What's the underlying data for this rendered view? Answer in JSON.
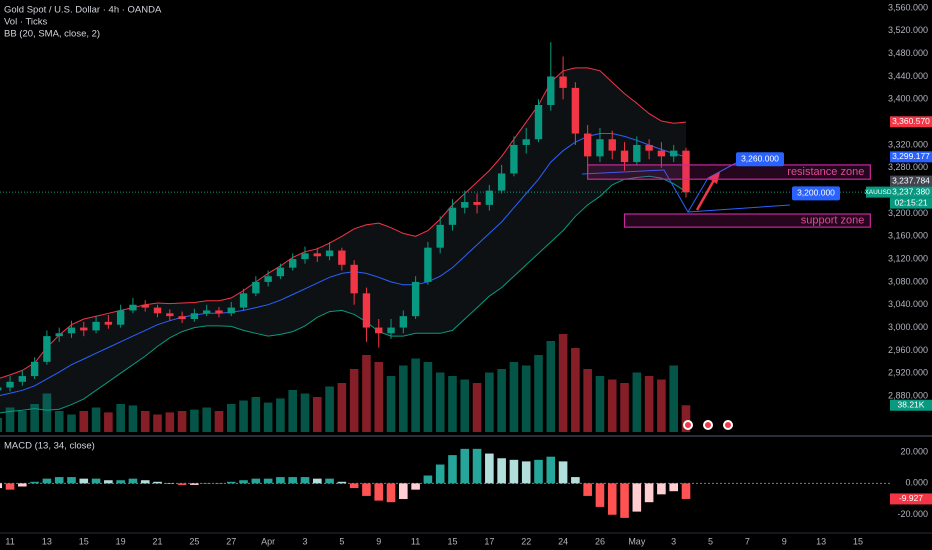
{
  "chart_data": [
    {
      "type": "candlestick",
      "title": "Gold Spot / U.S. Dollar · 4h · OANDA",
      "symbol": "XAUUSD",
      "countdown": "02:15:21",
      "categories": [
        null,
        "11",
        null,
        null,
        "13",
        null,
        null,
        "15",
        null,
        null,
        "19",
        null,
        null,
        "21",
        null,
        null,
        "25",
        null,
        null,
        "27",
        null,
        null,
        "Apr",
        null,
        null,
        "3",
        null,
        null,
        "5",
        null,
        null,
        "9",
        null,
        null,
        "11",
        null,
        null,
        "15",
        null,
        null,
        "17",
        null,
        null,
        "22",
        null,
        null,
        "24",
        null,
        null,
        "26",
        null,
        null,
        "May",
        null,
        null,
        "3",
        null,
        null,
        "5",
        null,
        null,
        "7",
        null,
        null,
        "9",
        null,
        null,
        "13",
        null,
        null,
        "15",
        null
      ],
      "series": [
        {
          "name": "XAUUSD",
          "color_up": "#089981",
          "color_down": "#f23645",
          "open": [
            2890,
            2895,
            2905,
            2915,
            2940,
            2985,
            2990,
            3000,
            2995,
            3010,
            3005,
            3030,
            3040,
            3035,
            3025,
            3020,
            3015,
            3025,
            3030,
            3025,
            3035,
            3060,
            3080,
            3090,
            3105,
            3120,
            3130,
            3125,
            3135,
            3110,
            3060,
            3000,
            2990,
            3000,
            3020,
            3080,
            3140,
            3180,
            3210,
            3220,
            3215,
            3240,
            3270,
            3320,
            3330,
            3390,
            3440,
            3420,
            3340,
            3300,
            3330,
            3310,
            3290,
            3320,
            3310,
            3300,
            3310,
            null,
            null,
            null,
            null,
            null,
            null,
            null,
            null,
            null,
            null,
            null,
            null,
            null,
            null,
            null
          ],
          "high": [
            2905,
            2915,
            2925,
            2948,
            2995,
            3000,
            3012,
            3010,
            3020,
            3022,
            3040,
            3052,
            3048,
            3040,
            3032,
            3028,
            3033,
            3040,
            3036,
            3045,
            3068,
            3090,
            3100,
            3112,
            3130,
            3142,
            3140,
            3150,
            3140,
            3118,
            3070,
            3015,
            3015,
            3030,
            3090,
            3150,
            3195,
            3225,
            3240,
            3235,
            3250,
            3285,
            3335,
            3350,
            3400,
            3500,
            3475,
            3430,
            3355,
            3350,
            3345,
            3325,
            3335,
            3330,
            3325,
            3320,
            3315,
            null,
            null,
            null,
            null,
            null,
            null,
            null,
            null,
            null,
            null,
            null,
            null,
            null,
            null,
            null
          ],
          "low": [
            2880,
            2888,
            2898,
            2910,
            2935,
            2975,
            2982,
            2985,
            2990,
            2998,
            3000,
            3025,
            3028,
            3018,
            3012,
            3008,
            3010,
            3020,
            3018,
            3020,
            3030,
            3055,
            3072,
            3085,
            3100,
            3112,
            3115,
            3118,
            3100,
            3040,
            2975,
            2965,
            2980,
            2990,
            3015,
            3075,
            3130,
            3170,
            3200,
            3200,
            3205,
            3235,
            3265,
            3305,
            3325,
            3380,
            3400,
            3320,
            3270,
            3290,
            3295,
            3275,
            3285,
            3295,
            3280,
            3290,
            3228,
            null,
            null,
            null,
            null,
            null,
            null,
            null,
            null,
            null,
            null,
            null,
            null,
            null,
            null,
            null
          ],
          "close": [
            2895,
            2905,
            2915,
            2940,
            2985,
            2990,
            3000,
            2995,
            3010,
            3005,
            3030,
            3040,
            3035,
            3025,
            3020,
            3015,
            3025,
            3030,
            3025,
            3035,
            3060,
            3080,
            3090,
            3105,
            3120,
            3130,
            3125,
            3135,
            3110,
            3060,
            3000,
            2990,
            3000,
            3020,
            3080,
            3140,
            3180,
            3210,
            3220,
            3215,
            3240,
            3270,
            3320,
            3330,
            3390,
            3440,
            3420,
            3340,
            3300,
            3330,
            3310,
            3290,
            3320,
            3310,
            3300,
            3310,
            3237,
            null,
            null,
            null,
            null,
            null,
            null,
            null,
            null,
            null,
            null,
            null,
            null,
            null,
            null,
            null
          ]
        }
      ],
      "volume": {
        "name": "Vol · Ticks",
        "color_up": "rgba(8,153,129,0.55)",
        "color_down": "rgba(242,54,69,0.55)",
        "ylim": [
          0,
          150
        ],
        "values": [
          20,
          35,
          30,
          40,
          55,
          30,
          25,
          30,
          35,
          28,
          40,
          38,
          30,
          25,
          28,
          30,
          32,
          35,
          30,
          40,
          45,
          50,
          42,
          48,
          60,
          55,
          50,
          65,
          70,
          90,
          110,
          100,
          80,
          95,
          105,
          100,
          85,
          80,
          75,
          70,
          85,
          90,
          100,
          95,
          110,
          130,
          140,
          120,
          90,
          80,
          75,
          70,
          85,
          80,
          75,
          95,
          38.21,
          null,
          null,
          null,
          null,
          null,
          null,
          null,
          null,
          null,
          null,
          null,
          null,
          null,
          null,
          null
        ],
        "value_label": {
          "value": 38.21,
          "label": "38.21K"
        },
        "label_color": "#089981"
      },
      "bollinger": {
        "name": "BB (20, SMA, close, 2)",
        "colors": {
          "upper": "#f23645",
          "basis": "#2962ff",
          "lower": "#089981"
        },
        "fill": "rgba(110,130,150,0.13)",
        "upper": [
          2910,
          2917,
          2925,
          2938,
          2965,
          2987,
          3005,
          3015,
          3020,
          3025,
          3030,
          3035,
          3040,
          3043,
          3042,
          3043,
          3044,
          3047,
          3047,
          3052,
          3065,
          3080,
          3095,
          3108,
          3123,
          3133,
          3138,
          3148,
          3160,
          3173,
          3180,
          3183,
          3175,
          3165,
          3160,
          3170,
          3190,
          3215,
          3235,
          3255,
          3275,
          3300,
          3330,
          3360,
          3390,
          3430,
          3450,
          3455,
          3455,
          3450,
          3430,
          3410,
          3393,
          3375,
          3362,
          3358,
          3360,
          null,
          null,
          null,
          null,
          null,
          null,
          null,
          null,
          null,
          null,
          null,
          null,
          null,
          null,
          null
        ],
        "basis": [
          2880,
          2885,
          2890,
          2898,
          2910,
          2922,
          2935,
          2945,
          2955,
          2965,
          2975,
          2985,
          2995,
          3005,
          3012,
          3018,
          3022,
          3025,
          3025,
          3027,
          3030,
          3035,
          3040,
          3048,
          3058,
          3068,
          3078,
          3088,
          3095,
          3098,
          3095,
          3088,
          3080,
          3075,
          3075,
          3080,
          3090,
          3105,
          3125,
          3145,
          3165,
          3185,
          3210,
          3235,
          3260,
          3290,
          3310,
          3325,
          3335,
          3340,
          3340,
          3335,
          3328,
          3320,
          3312,
          3305,
          3299,
          null,
          null,
          null,
          null,
          null,
          null,
          null,
          null,
          null,
          null,
          null,
          null,
          null,
          null,
          null
        ],
        "lower": [
          2850,
          2853,
          2855,
          2858,
          2855,
          2857,
          2865,
          2875,
          2890,
          2905,
          2920,
          2935,
          2950,
          2967,
          2982,
          2993,
          3000,
          3003,
          3003,
          3002,
          2995,
          2990,
          2985,
          2988,
          2993,
          3003,
          3018,
          3028,
          3030,
          3023,
          3010,
          2993,
          2985,
          2985,
          2990,
          2990,
          2990,
          2995,
          3015,
          3035,
          3055,
          3070,
          3090,
          3110,
          3130,
          3150,
          3170,
          3195,
          3215,
          3230,
          3250,
          3260,
          3263,
          3265,
          3262,
          3252,
          3238,
          null,
          null,
          null,
          null,
          null,
          null,
          null,
          null,
          null,
          null,
          null,
          null,
          null,
          null,
          null
        ]
      },
      "ylim": [
        2817,
        3574
      ],
      "yticks": [
        {
          "value": 3560,
          "label": "3,560.000"
        },
        {
          "value": 3520,
          "label": "3,520.000"
        },
        {
          "value": 3480,
          "label": "3,480.000"
        },
        {
          "value": 3440,
          "label": "3,440.000"
        },
        {
          "value": 3400,
          "label": "3,400.000"
        },
        {
          "value": 3320,
          "label": "3,320.000"
        },
        {
          "value": 3280,
          "label": "3,280.000"
        },
        {
          "value": 3200,
          "label": "3,200.000"
        },
        {
          "value": 3160,
          "label": "3,160.000"
        },
        {
          "value": 3120,
          "label": "3,120.000"
        },
        {
          "value": 3080,
          "label": "3,080.000"
        },
        {
          "value": 3040,
          "label": "3,040.000"
        },
        {
          "value": 3000,
          "label": "3,000.000"
        },
        {
          "value": 2960,
          "label": "2,960.000"
        },
        {
          "value": 2920,
          "label": "2,920.000"
        },
        {
          "value": 2880,
          "label": "2,880.000"
        }
      ],
      "grid": false,
      "price_labels": [
        {
          "value": 3360.57,
          "label": "3,360.570",
          "color": "#f23645"
        },
        {
          "value": 3299.177,
          "label": "3,299.177",
          "color": "#2962ff"
        },
        {
          "value": 3237.784,
          "label": "3,237.784",
          "color": "#434651"
        },
        {
          "value": 3237.38,
          "label": "3,237.380",
          "color": "#089981"
        }
      ],
      "zones": [
        {
          "text": "resistance zone",
          "range": [
            3260,
            3285
          ],
          "from": 48,
          "to": 71,
          "color": "#c8289b"
        },
        {
          "text": "support zone",
          "range": [
            3176,
            3199
          ],
          "from": 51,
          "to": 71,
          "color": "#c8289b"
        }
      ],
      "callouts": [
        {
          "value": 3260,
          "label": "3,260.000",
          "color": "#2962ff"
        },
        {
          "value": 3200,
          "label": "3,200.000",
          "color": "#2962ff"
        }
      ]
    },
    {
      "type": "bar",
      "title": "MACD (13, 34, close)",
      "values": [
        -3,
        -4,
        -2,
        1,
        3,
        4,
        4,
        3,
        3,
        2,
        2,
        3,
        2,
        1,
        0,
        -1,
        -1,
        0,
        0,
        1,
        2,
        3,
        3,
        4,
        4,
        4,
        3,
        3,
        1,
        -3,
        -8,
        -11,
        -12,
        -10,
        -4,
        5,
        12,
        18,
        22,
        22,
        19,
        16,
        15,
        14,
        15,
        17,
        14,
        4,
        -8,
        -15,
        -20,
        -22,
        -18,
        -12,
        -7,
        -5,
        -9.927,
        null,
        null,
        null,
        null,
        null,
        null,
        null,
        null,
        null,
        null,
        null,
        null,
        null,
        null,
        null
      ],
      "colors": {
        "rising_above": "#26a69a",
        "falling_above": "#b2dfdb",
        "rising_below": "#ffcdd2",
        "falling_below": "#ff5252"
      },
      "ylim": [
        -31,
        27
      ],
      "yticks": [
        {
          "value": 20,
          "label": "20.000"
        },
        {
          "value": 0,
          "label": "0.000"
        },
        {
          "value": -20,
          "label": "-20.000"
        }
      ],
      "value_label": {
        "value": -9.927,
        "label": "-9.927"
      },
      "label_color": "#f23645"
    }
  ]
}
